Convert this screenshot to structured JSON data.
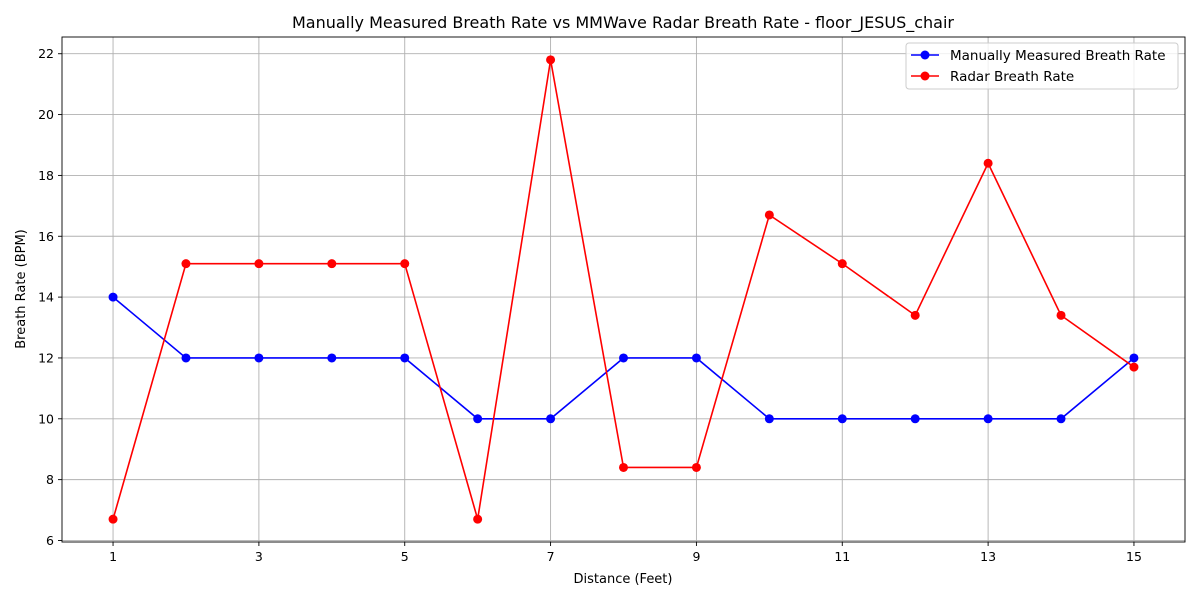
{
  "chart_data": {
    "type": "line",
    "title": "Manually Measured Breath Rate vs MMWave Radar Breath Rate - floor_JESUS_chair",
    "xlabel": "Distance (Feet)",
    "ylabel": "Breath Rate (BPM)",
    "x": [
      1,
      2,
      3,
      4,
      5,
      6,
      7,
      8,
      9,
      10,
      11,
      12,
      13,
      14,
      15
    ],
    "xticks": [
      1,
      3,
      5,
      7,
      9,
      11,
      13,
      15
    ],
    "yticks": [
      6,
      8,
      10,
      12,
      14,
      16,
      18,
      20,
      22
    ],
    "xlim": [
      0.3,
      15.7
    ],
    "ylim": [
      5.95,
      22.55
    ],
    "grid": true,
    "legend_position": "top-right",
    "series": [
      {
        "name": "Manually Measured Breath Rate",
        "color": "#0000ff",
        "marker": "circle",
        "values": [
          14,
          12,
          12,
          12,
          12,
          10,
          10,
          12,
          12,
          10,
          10,
          10,
          10,
          10,
          12
        ]
      },
      {
        "name": "Radar Breath Rate",
        "color": "#ff0000",
        "marker": "circle",
        "values": [
          6.7,
          15.1,
          15.1,
          15.1,
          15.1,
          6.7,
          21.8,
          8.4,
          8.4,
          16.7,
          15.1,
          13.4,
          18.4,
          13.4,
          11.7
        ]
      }
    ]
  }
}
